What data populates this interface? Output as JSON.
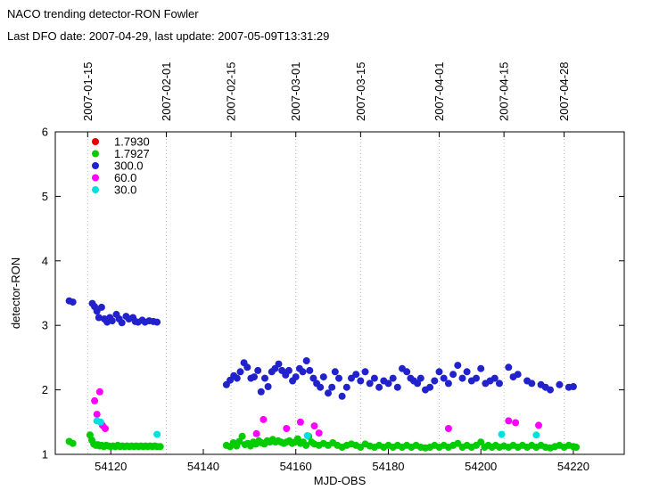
{
  "chart_data": {
    "type": "scatter",
    "title": "NACO trending detector-RON Fowler",
    "subtitle": "Last DFO date: 2007-04-29, last update: 2007-05-09T13:31:29",
    "xlabel": "MJD-OBS",
    "ylabel": "detector-RON",
    "xlim": [
      54108,
      54231
    ],
    "ylim": [
      1,
      6
    ],
    "x_ticks": [
      54120,
      54140,
      54160,
      54180,
      54200,
      54220
    ],
    "y_ticks": [
      1,
      2,
      3,
      4,
      5,
      6
    ],
    "x2_ticks": [
      {
        "label": "2007-01-15",
        "mjd": 54115
      },
      {
        "label": "2007-02-01",
        "mjd": 54132
      },
      {
        "label": "2007-02-15",
        "mjd": 54146
      },
      {
        "label": "2007-03-01",
        "mjd": 54160
      },
      {
        "label": "2007-03-15",
        "mjd": 54174
      },
      {
        "label": "2007-04-01",
        "mjd": 54191
      },
      {
        "label": "2007-04-15",
        "mjd": 54205
      },
      {
        "label": "2007-04-28",
        "mjd": 54218
      }
    ],
    "grid": {
      "vertical_at_x2_ticks": true,
      "style": "dotted"
    },
    "legend_position": "top-left-inside",
    "marker": "filled-circle",
    "colors": {
      "background": "#ffffff",
      "axis": "#000000",
      "grid": "#b4b4b4"
    },
    "series": [
      {
        "name": "1.7930",
        "color": "#e60000",
        "points": []
      },
      {
        "name": "1.7927",
        "color": "#00cc00",
        "points": [
          [
            54111,
            1.2
          ],
          [
            54111.8,
            1.17
          ],
          [
            54115.5,
            1.3
          ],
          [
            54115.9,
            1.22
          ],
          [
            54116.3,
            1.16
          ],
          [
            54116.8,
            1.14
          ],
          [
            54117.2,
            1.15
          ],
          [
            54117.6,
            1.13
          ],
          [
            54118,
            1.14
          ],
          [
            54118.5,
            1.12
          ],
          [
            54119,
            1.14
          ],
          [
            54119.5,
            1.13
          ],
          [
            54120,
            1.12
          ],
          [
            54120.5,
            1.13
          ],
          [
            54121,
            1.12
          ],
          [
            54121.5,
            1.14
          ],
          [
            54122,
            1.12
          ],
          [
            54122.5,
            1.13
          ],
          [
            54123,
            1.12
          ],
          [
            54123.5,
            1.13
          ],
          [
            54124,
            1.12
          ],
          [
            54124.5,
            1.13
          ],
          [
            54125,
            1.12
          ],
          [
            54125.5,
            1.13
          ],
          [
            54126,
            1.12
          ],
          [
            54126.5,
            1.13
          ],
          [
            54127,
            1.12
          ],
          [
            54127.5,
            1.13
          ],
          [
            54128,
            1.12
          ],
          [
            54128.5,
            1.13
          ],
          [
            54129,
            1.12
          ],
          [
            54129.5,
            1.13
          ],
          [
            54130,
            1.12
          ],
          [
            54130.7,
            1.12
          ],
          [
            54145,
            1.14
          ],
          [
            54145.8,
            1.12
          ],
          [
            54146.5,
            1.18
          ],
          [
            54147.2,
            1.13
          ],
          [
            54147.8,
            1.2
          ],
          [
            54148.4,
            1.28
          ],
          [
            54149,
            1.15
          ],
          [
            54149.6,
            1.17
          ],
          [
            54150.2,
            1.13
          ],
          [
            54150.8,
            1.19
          ],
          [
            54151.4,
            1.16
          ],
          [
            54152,
            1.21
          ],
          [
            54152.6,
            1.18
          ],
          [
            54153.2,
            1.16
          ],
          [
            54153.8,
            1.21
          ],
          [
            54154.4,
            1.19
          ],
          [
            54155,
            1.23
          ],
          [
            54155.6,
            1.19
          ],
          [
            54156.2,
            1.21
          ],
          [
            54156.8,
            1.19
          ],
          [
            54157.4,
            1.17
          ],
          [
            54158,
            1.19
          ],
          [
            54158.6,
            1.21
          ],
          [
            54159.2,
            1.17
          ],
          [
            54159.8,
            1.19
          ],
          [
            54160.4,
            1.24
          ],
          [
            54161,
            1.17
          ],
          [
            54161.6,
            1.19
          ],
          [
            54162.2,
            1.14
          ],
          [
            54162.8,
            1.28
          ],
          [
            54163.4,
            1.19
          ],
          [
            54164,
            1.16
          ],
          [
            54165,
            1.14
          ],
          [
            54166,
            1.17
          ],
          [
            54167,
            1.14
          ],
          [
            54168,
            1.18
          ],
          [
            54169,
            1.14
          ],
          [
            54170,
            1.11
          ],
          [
            54171,
            1.14
          ],
          [
            54172,
            1.16
          ],
          [
            54173,
            1.14
          ],
          [
            54174,
            1.11
          ],
          [
            54175,
            1.16
          ],
          [
            54176,
            1.13
          ],
          [
            54177,
            1.11
          ],
          [
            54178,
            1.14
          ],
          [
            54179,
            1.11
          ],
          [
            54180,
            1.14
          ],
          [
            54181,
            1.11
          ],
          [
            54182,
            1.14
          ],
          [
            54183,
            1.11
          ],
          [
            54184,
            1.14
          ],
          [
            54185,
            1.11
          ],
          [
            54186,
            1.14
          ],
          [
            54187,
            1.11
          ],
          [
            54188,
            1.1
          ],
          [
            54189,
            1.11
          ],
          [
            54190,
            1.14
          ],
          [
            54191,
            1.11
          ],
          [
            54192,
            1.14
          ],
          [
            54193,
            1.11
          ],
          [
            54194,
            1.14
          ],
          [
            54195,
            1.17
          ],
          [
            54196,
            1.11
          ],
          [
            54197,
            1.14
          ],
          [
            54198,
            1.11
          ],
          [
            54199,
            1.14
          ],
          [
            54200,
            1.19
          ],
          [
            54200.8,
            1.11
          ],
          [
            54201.6,
            1.14
          ],
          [
            54202.4,
            1.11
          ],
          [
            54203.2,
            1.14
          ],
          [
            54204,
            1.11
          ],
          [
            54205,
            1.13
          ],
          [
            54206,
            1.11
          ],
          [
            54207,
            1.14
          ],
          [
            54208,
            1.11
          ],
          [
            54209,
            1.14
          ],
          [
            54210,
            1.11
          ],
          [
            54211,
            1.14
          ],
          [
            54212,
            1.11
          ],
          [
            54213,
            1.14
          ],
          [
            54214,
            1.11
          ],
          [
            54215,
            1.1
          ],
          [
            54216,
            1.12
          ],
          [
            54217,
            1.14
          ],
          [
            54218,
            1.11
          ],
          [
            54219,
            1.14
          ],
          [
            54220,
            1.12
          ],
          [
            54220.6,
            1.11
          ]
        ]
      },
      {
        "name": "300.0",
        "color": "#2222cc",
        "points": [
          [
            54111,
            3.38
          ],
          [
            54111.8,
            3.36
          ],
          [
            54116,
            3.34
          ],
          [
            54116.5,
            3.29
          ],
          [
            54117,
            3.22
          ],
          [
            54117.4,
            3.12
          ],
          [
            54118,
            3.28
          ],
          [
            54118.6,
            3.1
          ],
          [
            54119.2,
            3.05
          ],
          [
            54119.8,
            3.12
          ],
          [
            54120.3,
            3.07
          ],
          [
            54121.2,
            3.17
          ],
          [
            54121.8,
            3.1
          ],
          [
            54122.4,
            3.04
          ],
          [
            54123.3,
            3.14
          ],
          [
            54123.9,
            3.1
          ],
          [
            54124.8,
            3.12
          ],
          [
            54125.3,
            3.06
          ],
          [
            54125.9,
            3.05
          ],
          [
            54126.8,
            3.08
          ],
          [
            54127.4,
            3.05
          ],
          [
            54128.3,
            3.07
          ],
          [
            54129.2,
            3.06
          ],
          [
            54130,
            3.05
          ],
          [
            54145,
            2.08
          ],
          [
            54145.8,
            2.15
          ],
          [
            54146.6,
            2.22
          ],
          [
            54147.3,
            2.18
          ],
          [
            54148,
            2.28
          ],
          [
            54148.8,
            2.42
          ],
          [
            54149.5,
            2.35
          ],
          [
            54150.3,
            2.18
          ],
          [
            54151,
            2.2
          ],
          [
            54151.8,
            2.3
          ],
          [
            54152.5,
            1.97
          ],
          [
            54153.3,
            2.18
          ],
          [
            54154,
            2.05
          ],
          [
            54154.8,
            2.28
          ],
          [
            54155.5,
            2.33
          ],
          [
            54156.3,
            2.4
          ],
          [
            54157,
            2.3
          ],
          [
            54157.8,
            2.23
          ],
          [
            54158.5,
            2.3
          ],
          [
            54159.3,
            2.14
          ],
          [
            54160,
            2.2
          ],
          [
            54160.8,
            2.33
          ],
          [
            54161.5,
            2.28
          ],
          [
            54162.3,
            2.45
          ],
          [
            54163,
            2.3
          ],
          [
            54163.8,
            2.18
          ],
          [
            54164.5,
            2.1
          ],
          [
            54165.3,
            2.04
          ],
          [
            54166,
            2.2
          ],
          [
            54167,
            1.95
          ],
          [
            54167.8,
            2.04
          ],
          [
            54168.5,
            2.28
          ],
          [
            54169.3,
            2.18
          ],
          [
            54170,
            1.9
          ],
          [
            54171,
            2.04
          ],
          [
            54172,
            2.18
          ],
          [
            54173,
            2.24
          ],
          [
            54174,
            2.14
          ],
          [
            54175,
            2.28
          ],
          [
            54176,
            2.1
          ],
          [
            54177,
            2.18
          ],
          [
            54178,
            2.04
          ],
          [
            54179,
            2.14
          ],
          [
            54180,
            2.1
          ],
          [
            54181,
            2.18
          ],
          [
            54182,
            2.04
          ],
          [
            54183,
            2.33
          ],
          [
            54184,
            2.28
          ],
          [
            54184.8,
            2.18
          ],
          [
            54185.5,
            2.14
          ],
          [
            54186.3,
            2.1
          ],
          [
            54187,
            2.18
          ],
          [
            54188,
            2.0
          ],
          [
            54189,
            2.04
          ],
          [
            54190,
            2.14
          ],
          [
            54191,
            2.28
          ],
          [
            54192,
            2.18
          ],
          [
            54193,
            2.1
          ],
          [
            54194,
            2.24
          ],
          [
            54195,
            2.38
          ],
          [
            54196,
            2.18
          ],
          [
            54197,
            2.28
          ],
          [
            54198,
            2.14
          ],
          [
            54199,
            2.18
          ],
          [
            54200,
            2.33
          ],
          [
            54201,
            2.1
          ],
          [
            54202,
            2.14
          ],
          [
            54203,
            2.18
          ],
          [
            54204,
            2.1
          ],
          [
            54206,
            2.35
          ],
          [
            54207,
            2.2
          ],
          [
            54208,
            2.24
          ],
          [
            54210,
            2.14
          ],
          [
            54211,
            2.1
          ],
          [
            54213,
            2.08
          ],
          [
            54214,
            2.04
          ],
          [
            54215,
            2.0
          ],
          [
            54217,
            2.08
          ],
          [
            54219,
            2.04
          ],
          [
            54220,
            2.05
          ]
        ]
      },
      {
        "name": "60.0",
        "color": "#ff00ff",
        "points": [
          [
            54116.5,
            1.83
          ],
          [
            54117,
            1.62
          ],
          [
            54117.6,
            1.97
          ],
          [
            54118.2,
            1.45
          ],
          [
            54118.8,
            1.4
          ],
          [
            54151.5,
            1.32
          ],
          [
            54153,
            1.54
          ],
          [
            54158,
            1.4
          ],
          [
            54161,
            1.5
          ],
          [
            54164,
            1.44
          ],
          [
            54165,
            1.33
          ],
          [
            54193,
            1.4
          ],
          [
            54206,
            1.52
          ],
          [
            54207.5,
            1.49
          ],
          [
            54212.5,
            1.45
          ]
        ]
      },
      {
        "name": "30.0",
        "color": "#00e0e0",
        "points": [
          [
            54117,
            1.52
          ],
          [
            54117.8,
            1.5
          ],
          [
            54130,
            1.31
          ],
          [
            54162.5,
            1.29
          ],
          [
            54204.5,
            1.31
          ],
          [
            54212,
            1.3
          ]
        ]
      }
    ]
  }
}
